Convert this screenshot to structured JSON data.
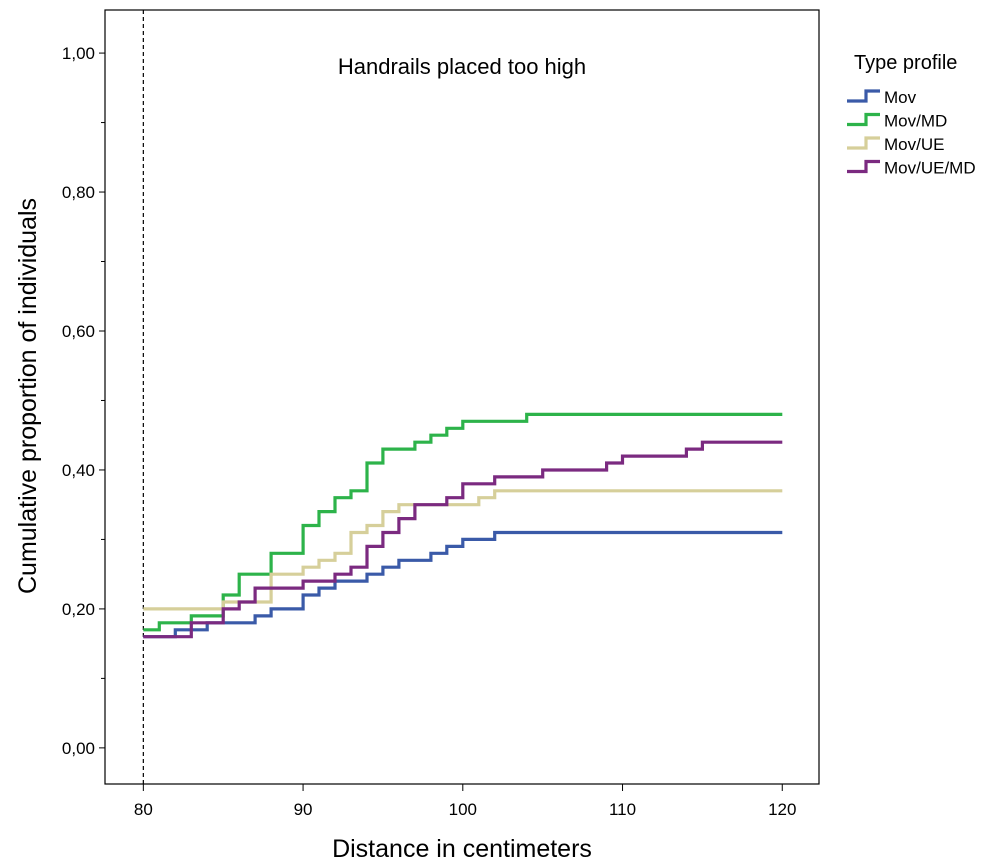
{
  "chart_data": {
    "type": "line",
    "step": true,
    "title": "Handrails placed too high",
    "xlabel": "Distance in centimeters",
    "ylabel": "Cumulative proportion of individuals",
    "xlim": [
      77.6,
      122.3
    ],
    "ylim": [
      -0.052,
      1.062
    ],
    "xticks": [
      80,
      90,
      100,
      110,
      120
    ],
    "yticks": [
      0.0,
      0.2,
      0.4,
      0.6,
      0.8,
      1.0
    ],
    "yticks_minor": [
      0.1,
      0.3,
      0.5,
      0.7,
      0.9
    ],
    "ytick_labels": [
      "0,00",
      "0,20",
      "0,40",
      "0,60",
      "0,80",
      "1,00"
    ],
    "reference_line_x": 80,
    "legend": {
      "title": "Type profile",
      "position": "right"
    },
    "series": [
      {
        "name": "Mov",
        "color": "#3a5aa8",
        "x": [
          80,
          82,
          84,
          87,
          88,
          90,
          91,
          92,
          94,
          95,
          96,
          98,
          99,
          100,
          102,
          120
        ],
        "y": [
          0.16,
          0.17,
          0.18,
          0.19,
          0.2,
          0.22,
          0.23,
          0.24,
          0.25,
          0.26,
          0.27,
          0.28,
          0.29,
          0.3,
          0.31,
          0.31
        ]
      },
      {
        "name": "Mov/MD",
        "color": "#2db34a",
        "x": [
          80,
          81,
          83,
          85,
          86,
          88,
          90,
          91,
          92,
          93,
          94,
          95,
          97,
          98,
          99,
          100,
          104,
          120
        ],
        "y": [
          0.17,
          0.18,
          0.19,
          0.22,
          0.25,
          0.28,
          0.32,
          0.34,
          0.36,
          0.37,
          0.41,
          0.43,
          0.44,
          0.45,
          0.46,
          0.47,
          0.48,
          0.48
        ]
      },
      {
        "name": "Mov/UE",
        "color": "#d6cf9a",
        "x": [
          80,
          85,
          88,
          90,
          91,
          92,
          93,
          94,
          95,
          96,
          101,
          102,
          120
        ],
        "y": [
          0.2,
          0.21,
          0.25,
          0.26,
          0.27,
          0.28,
          0.31,
          0.32,
          0.34,
          0.35,
          0.36,
          0.37,
          0.37
        ]
      },
      {
        "name": "Mov/UE/MD",
        "color": "#7b2a80",
        "x": [
          80,
          83,
          85,
          86,
          87,
          90,
          92,
          93,
          94,
          95,
          96,
          97,
          99,
          100,
          102,
          105,
          109,
          110,
          114,
          115,
          120
        ],
        "y": [
          0.16,
          0.18,
          0.2,
          0.21,
          0.23,
          0.24,
          0.25,
          0.26,
          0.29,
          0.31,
          0.33,
          0.35,
          0.36,
          0.38,
          0.39,
          0.4,
          0.41,
          0.42,
          0.43,
          0.44,
          0.44
        ]
      }
    ]
  }
}
